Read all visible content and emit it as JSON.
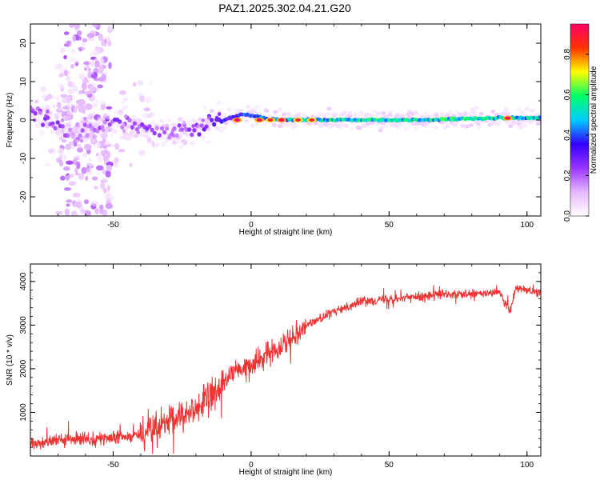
{
  "chart_data": [
    {
      "type": "heatmap",
      "title": "PAZ1.2025.302.04.21.G20",
      "xlabel": "Height of straight line (km)",
      "ylabel": "Frequency (Hz)",
      "xlim": [
        -80,
        105
      ],
      "ylim": [
        -25,
        25
      ],
      "xticks": [
        -50,
        0,
        50,
        100
      ],
      "yticks": [
        -20,
        -10,
        0,
        10,
        20
      ],
      "colorbar": {
        "label": "Normalized spectral amplitude",
        "range": [
          0,
          0.95
        ],
        "ticks": [
          0.0,
          0.2,
          0.4,
          0.6,
          0.8
        ],
        "tick_labels": [
          "0.0",
          "0.2",
          "0.4",
          "0.6",
          "0.8"
        ],
        "colormap": [
          "#ffffff",
          "#e6b8ff",
          "#9933ff",
          "#3300ff",
          "#00ccff",
          "#00ff66",
          "#ffff00",
          "#ff3300",
          "#ff0066"
        ]
      },
      "ridge": [
        {
          "x": -78,
          "f": 2.0,
          "amp": 0.25
        },
        {
          "x": -70,
          "f": -1.5,
          "amp": 0.25
        },
        {
          "x": -65,
          "f": -4.0,
          "amp": 0.2
        },
        {
          "x": -48,
          "f": 0.0,
          "amp": 0.25
        },
        {
          "x": -40,
          "f": -2.0,
          "amp": 0.25
        },
        {
          "x": -30,
          "f": -4.0,
          "amp": 0.2
        },
        {
          "x": -20,
          "f": -2.0,
          "amp": 0.25
        },
        {
          "x": -10,
          "f": 0.0,
          "amp": 0.35
        },
        {
          "x": -3,
          "f": 1.5,
          "amp": 0.4
        },
        {
          "x": 10,
          "f": 0.0,
          "amp": 0.5
        },
        {
          "x": 30,
          "f": 0.0,
          "amp": 0.55
        },
        {
          "x": 60,
          "f": 0.0,
          "amp": 0.55
        },
        {
          "x": 90,
          "f": 0.5,
          "amp": 0.55
        },
        {
          "x": 105,
          "f": 0.5,
          "amp": 0.5
        }
      ],
      "peaks": [
        {
          "x": -5,
          "f": 0.0,
          "amp": 0.95
        },
        {
          "x": 3,
          "f": 0.0,
          "amp": 0.95
        },
        {
          "x": 7,
          "f": 0.0,
          "amp": 0.9
        },
        {
          "x": 11,
          "f": 0.0,
          "amp": 0.95
        },
        {
          "x": 17,
          "f": 0.0,
          "amp": 0.9
        },
        {
          "x": 22,
          "f": 0.0,
          "amp": 0.9
        },
        {
          "x": 93,
          "f": 0.5,
          "amp": 0.95
        }
      ]
    },
    {
      "type": "line",
      "xlabel": "Height of straight line (km)",
      "ylabel": "SNR (10 * v/v)",
      "xlim": [
        -80,
        105
      ],
      "ylim": [
        0,
        4400
      ],
      "xticks": [
        -50,
        0,
        50,
        100
      ],
      "yticks": [
        1000,
        2000,
        3000,
        4000
      ],
      "color": "#ee3333",
      "series": [
        {
          "name": "SNR",
          "x": [
            -80,
            -70,
            -60,
            -50,
            -40,
            -30,
            -20,
            -15,
            -10,
            -5,
            0,
            5,
            10,
            20,
            30,
            40,
            50,
            60,
            70,
            80,
            90,
            94,
            95,
            96,
            100,
            105
          ],
          "values": [
            300,
            350,
            400,
            400,
            500,
            750,
            1100,
            1300,
            1700,
            1950,
            2050,
            2300,
            2500,
            3000,
            3300,
            3550,
            3600,
            3650,
            3700,
            3700,
            3750,
            3300,
            3600,
            3850,
            3800,
            3750
          ]
        }
      ]
    }
  ]
}
